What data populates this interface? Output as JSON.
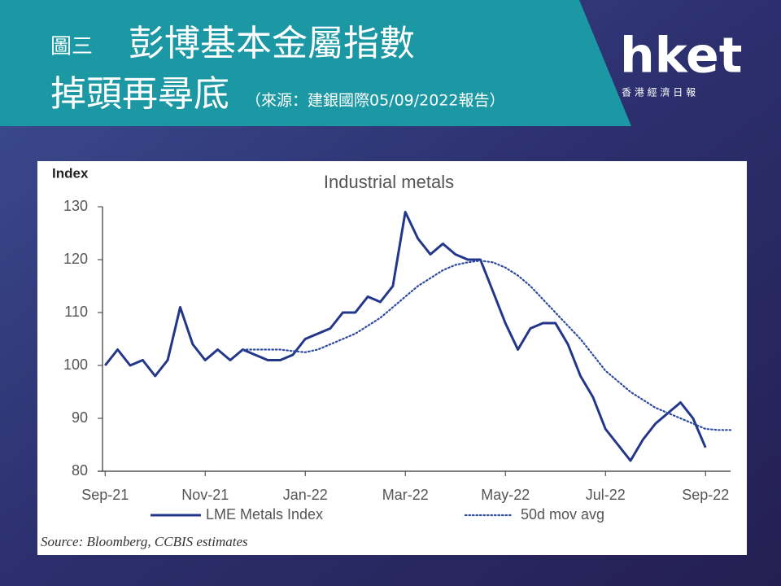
{
  "slide": {
    "figure_label": "圖三",
    "title_line1": "彭博基本金屬指數",
    "title_line2": "掉頭再尋底",
    "source_note": "（來源：建銀國際05/09/2022報告）",
    "logo": "hket",
    "logo_subtitle": "香 港 經 濟 日 報"
  },
  "chart_data": {
    "type": "line",
    "title": "Industrial metals",
    "y_label": "Index",
    "source": "Source: Bloomberg, CCBIS estimates",
    "x": [
      0,
      0.25,
      0.5,
      0.75,
      1,
      1.25,
      1.5,
      1.75,
      2,
      2.25,
      2.5,
      2.75,
      3,
      3.25,
      3.5,
      3.75,
      4,
      4.25,
      4.5,
      4.75,
      5,
      5.25,
      5.5,
      5.75,
      6,
      6.25,
      6.5,
      6.75,
      7,
      7.25,
      7.5,
      7.75,
      8,
      8.25,
      8.5,
      8.75,
      9,
      9.25,
      9.5,
      9.75,
      10,
      10.25,
      10.5,
      10.75,
      11,
      11.25,
      11.5,
      11.75,
      12,
      12.25,
      12.5
    ],
    "xlim": [
      -0.15,
      12.5
    ],
    "xticks": [
      {
        "value": 0,
        "label": "Sep-21"
      },
      {
        "value": 2,
        "label": "Nov-21"
      },
      {
        "value": 4,
        "label": "Jan-22"
      },
      {
        "value": 6,
        "label": "Mar-22"
      },
      {
        "value": 8,
        "label": "May-22"
      },
      {
        "value": 10,
        "label": "Jul-22"
      },
      {
        "value": 12,
        "label": "Sep-22"
      }
    ],
    "ylim": [
      80,
      130
    ],
    "yticks": [
      80,
      90,
      100,
      110,
      120,
      130
    ],
    "grid": false,
    "legend": "bottom",
    "series": [
      {
        "name": "LME Metals Index",
        "color": "#23378a",
        "style": "solid",
        "values": [
          100,
          103,
          100,
          101,
          98,
          101,
          111,
          104,
          101,
          103,
          101,
          103,
          102,
          101,
          101,
          102,
          105,
          106,
          107,
          110,
          110,
          113,
          112,
          115,
          129,
          124,
          121,
          123,
          121,
          120,
          120,
          114,
          108,
          103,
          107,
          108,
          108,
          104,
          98,
          94,
          88,
          85,
          82,
          86,
          89,
          91,
          93,
          90,
          84.5,
          null,
          null
        ]
      },
      {
        "name": "50d mov avg",
        "color": "#2e4a9e",
        "style": "dotted",
        "values": [
          null,
          null,
          null,
          null,
          null,
          null,
          null,
          null,
          null,
          null,
          null,
          103,
          103,
          103,
          103,
          102.7,
          102.5,
          103,
          104,
          105,
          106,
          107.5,
          109,
          111,
          113,
          115,
          116.5,
          118,
          119,
          119.5,
          119.8,
          119.5,
          118.5,
          117,
          115,
          112.5,
          110,
          107.5,
          105,
          102,
          99,
          97,
          95,
          93.5,
          92,
          91,
          90,
          89,
          88,
          87.8,
          87.8
        ]
      }
    ]
  }
}
